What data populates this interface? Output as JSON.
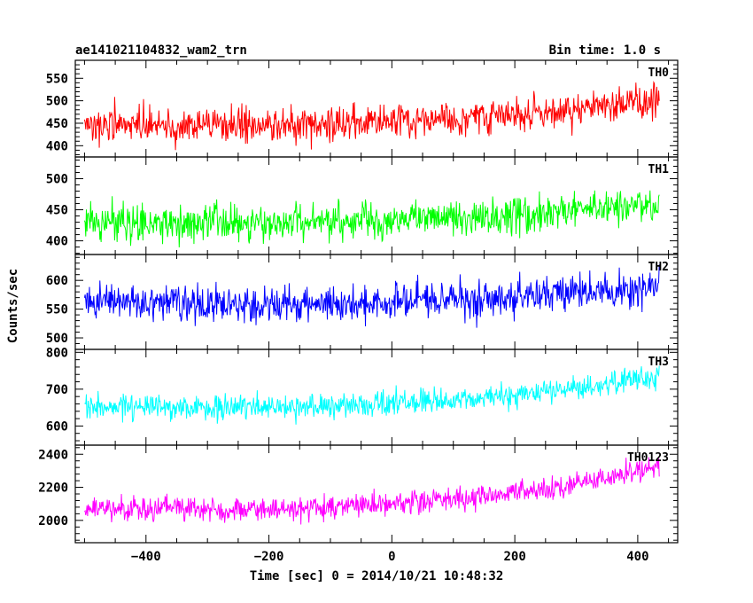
{
  "header": {
    "title": "ae141021104832_wam2_trn",
    "bin_time": "Bin time: 1.0 s"
  },
  "chart_data": {
    "type": "line",
    "title": "ae141021104832_wam2_trn",
    "subtitle": "Bin time: 1.0 s",
    "xlabel": "Time [sec] 0 = 2014/10/21 10:48:32",
    "ylabel": "Counts/sec",
    "xlim": [
      -515,
      465
    ],
    "x_ticks": [
      -400,
      -200,
      0,
      200,
      400
    ],
    "x_start": -500,
    "x_end": 435,
    "x_step": 1,
    "grid": false,
    "legend": "none",
    "panels": [
      {
        "name": "TH0",
        "color": "#ff0000",
        "ylim": [
          375,
          590
        ],
        "y_ticks": [
          400,
          450,
          500,
          550
        ],
        "trend": [
          [
            -500,
            447
          ],
          [
            -200,
            445
          ],
          [
            0,
            455
          ],
          [
            200,
            470
          ],
          [
            300,
            480
          ],
          [
            435,
            510
          ]
        ],
        "noise": 35
      },
      {
        "name": "TH1",
        "color": "#00ff00",
        "ylim": [
          378,
          535
        ],
        "y_ticks": [
          400,
          450,
          500
        ],
        "trend": [
          [
            -500,
            428
          ],
          [
            -100,
            430
          ],
          [
            100,
            435
          ],
          [
            300,
            445
          ],
          [
            435,
            462
          ]
        ],
        "noise": 27
      },
      {
        "name": "TH2",
        "color": "#0000ff",
        "ylim": [
          480,
          645
        ],
        "y_ticks": [
          500,
          550,
          600
        ],
        "trend": [
          [
            -500,
            563
          ],
          [
            -200,
            557
          ],
          [
            0,
            560
          ],
          [
            200,
            572
          ],
          [
            435,
            585
          ]
        ],
        "noise": 28
      },
      {
        "name": "TH3",
        "color": "#00ffff",
        "ylim": [
          548,
          808
        ],
        "y_ticks": [
          600,
          700,
          800
        ],
        "trend": [
          [
            -500,
            655
          ],
          [
            -100,
            652
          ],
          [
            100,
            670
          ],
          [
            300,
            700
          ],
          [
            435,
            735
          ]
        ],
        "noise": 30
      },
      {
        "name": "TH0123",
        "color": "#ff00ff",
        "ylim": [
          1865,
          2455
        ],
        "y_ticks": [
          2000,
          2200,
          2400
        ],
        "trend": [
          [
            -500,
            2075
          ],
          [
            -200,
            2060
          ],
          [
            0,
            2100
          ],
          [
            200,
            2170
          ],
          [
            300,
            2220
          ],
          [
            435,
            2320
          ]
        ],
        "noise": 65
      }
    ]
  }
}
